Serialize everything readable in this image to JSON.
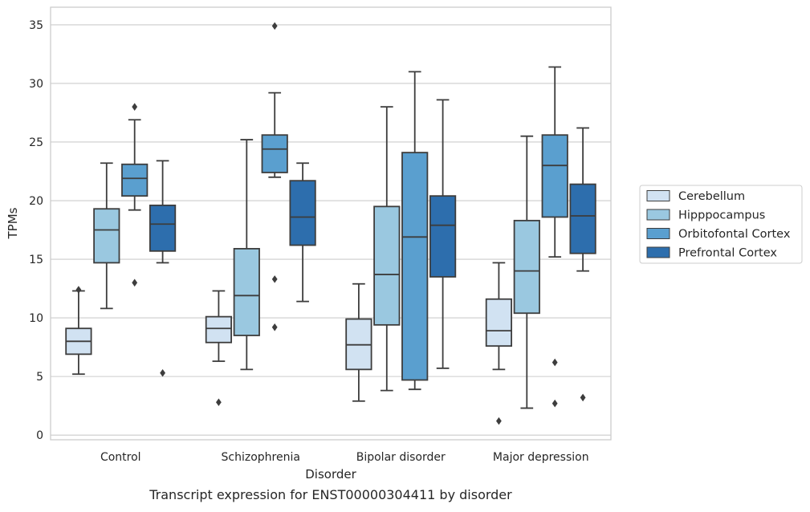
{
  "chart_data": {
    "type": "box",
    "title": "",
    "caption": "Transcript expression for ENST00000304411 by disorder",
    "xlabel": "Disorder",
    "ylabel": "TPMs",
    "ylim": [
      -0.4,
      36.5
    ],
    "yticks": [
      0,
      5,
      10,
      15,
      20,
      25,
      30,
      35
    ],
    "grid": "horizontal",
    "legend_position": "right",
    "categories": [
      "Control",
      "Schizophrenia",
      "Bipolar disorder",
      "Major depression"
    ],
    "series": [
      {
        "name": "Cerebellum",
        "color": "#d1e2f2",
        "boxes": [
          {
            "whislo": 5.2,
            "q1": 6.9,
            "med": 8.0,
            "q3": 9.1,
            "whishi": 12.3,
            "fliers": [
              12.4
            ]
          },
          {
            "whislo": 6.3,
            "q1": 7.9,
            "med": 9.1,
            "q3": 10.1,
            "whishi": 12.3,
            "fliers": [
              2.8
            ]
          },
          {
            "whislo": 2.9,
            "q1": 5.6,
            "med": 7.7,
            "q3": 9.9,
            "whishi": 12.9,
            "fliers": []
          },
          {
            "whislo": 5.6,
            "q1": 7.6,
            "med": 8.9,
            "q3": 11.6,
            "whishi": 14.7,
            "fliers": [
              1.2
            ]
          }
        ]
      },
      {
        "name": "Hipppocampus",
        "color": "#9ac8e0",
        "boxes": [
          {
            "whislo": 10.8,
            "q1": 14.7,
            "med": 17.5,
            "q3": 19.3,
            "whishi": 23.2,
            "fliers": []
          },
          {
            "whislo": 5.6,
            "q1": 8.5,
            "med": 11.9,
            "q3": 15.9,
            "whishi": 25.2,
            "fliers": []
          },
          {
            "whislo": 3.8,
            "q1": 9.4,
            "med": 13.7,
            "q3": 19.5,
            "whishi": 28.0,
            "fliers": []
          },
          {
            "whislo": 2.3,
            "q1": 10.4,
            "med": 14.0,
            "q3": 18.3,
            "whishi": 25.5,
            "fliers": []
          }
        ]
      },
      {
        "name": "Orbitofontal Cortex",
        "color": "#5a9fcf",
        "boxes": [
          {
            "whislo": 19.2,
            "q1": 20.4,
            "med": 21.9,
            "q3": 23.1,
            "whishi": 26.9,
            "fliers": [
              28.0,
              13.0
            ]
          },
          {
            "whislo": 22.0,
            "q1": 22.4,
            "med": 24.4,
            "q3": 25.6,
            "whishi": 29.2,
            "fliers": [
              34.9,
              13.3,
              9.2
            ]
          },
          {
            "whislo": 3.9,
            "q1": 4.7,
            "med": 16.9,
            "q3": 24.1,
            "whishi": 31.0,
            "fliers": []
          },
          {
            "whislo": 15.2,
            "q1": 18.6,
            "med": 23.0,
            "q3": 25.6,
            "whishi": 31.4,
            "fliers": [
              6.2,
              2.7
            ]
          }
        ]
      },
      {
        "name": "Prefrontal Cortex",
        "color": "#2d6ead",
        "boxes": [
          {
            "whislo": 14.7,
            "q1": 15.7,
            "med": 18.0,
            "q3": 19.6,
            "whishi": 23.4,
            "fliers": [
              5.3
            ]
          },
          {
            "whislo": 11.4,
            "q1": 16.2,
            "med": 18.6,
            "q3": 21.7,
            "whishi": 23.2,
            "fliers": []
          },
          {
            "whislo": 5.7,
            "q1": 13.5,
            "med": 17.9,
            "q3": 20.4,
            "whishi": 28.6,
            "fliers": []
          },
          {
            "whislo": 14.0,
            "q1": 15.5,
            "med": 18.7,
            "q3": 21.4,
            "whishi": 26.2,
            "fliers": [
              3.2
            ]
          }
        ]
      }
    ]
  }
}
